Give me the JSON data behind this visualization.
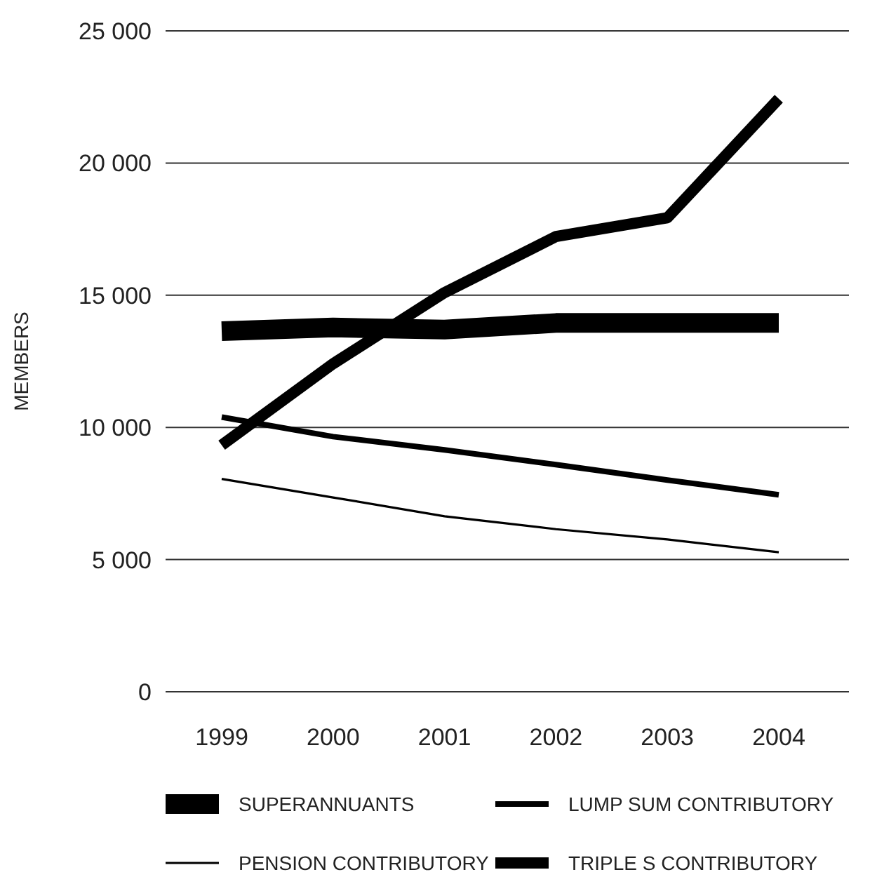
{
  "chart_data": {
    "type": "line",
    "ylabel": "MEMBERS",
    "categories": [
      "1999",
      "2000",
      "2001",
      "2002",
      "2003",
      "2004"
    ],
    "series": [
      {
        "name": "SUPERANNUANTS",
        "color": "#000000",
        "values": [
          13640,
          13780,
          13700,
          13950,
          13950,
          13950
        ]
      },
      {
        "name": "LUMP SUM CONTRIBUTORY",
        "color": "#000000",
        "values": [
          10390,
          9650,
          9150,
          8590,
          8010,
          7450
        ]
      },
      {
        "name": "PENSION CONTRIBUTORY",
        "color": "#000000",
        "values": [
          8050,
          7350,
          6640,
          6150,
          5760,
          5280
        ]
      },
      {
        "name": "TRIPLE S CONTRIBUTORY",
        "color": "#000000",
        "values": [
          9330,
          12410,
          15100,
          17220,
          17930,
          22430
        ]
      }
    ],
    "ylim": [
      0,
      25000
    ],
    "yticks": [
      {
        "value": 0,
        "label": "0"
      },
      {
        "value": 5000,
        "label": "5 000"
      },
      {
        "value": 10000,
        "label": "10 000"
      },
      {
        "value": 15000,
        "label": "15 000"
      },
      {
        "value": 20000,
        "label": "20 000"
      },
      {
        "value": 25000,
        "label": "25 000"
      }
    ],
    "grid": "y",
    "legend": "bottom",
    "marker": "none",
    "line_style": "solid"
  }
}
